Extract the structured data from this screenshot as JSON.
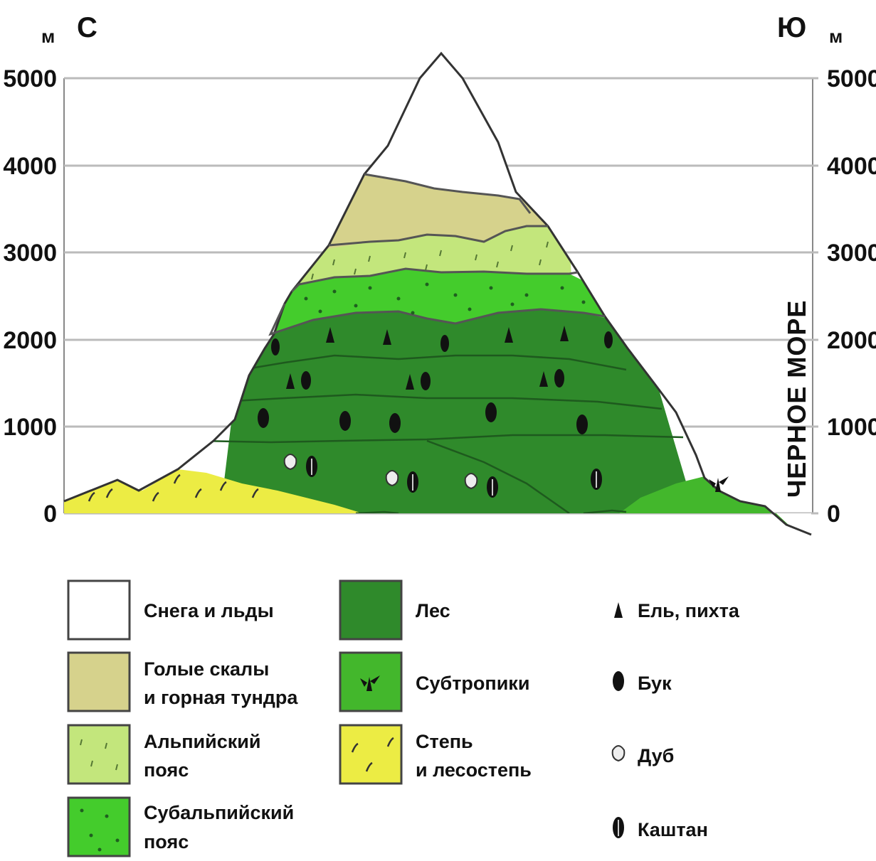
{
  "diagram": {
    "unit_left": "м",
    "unit_right": "м",
    "dir_north": "С",
    "dir_south": "Ю",
    "y_ticks": [
      "0",
      "1000",
      "2000",
      "3000",
      "4000",
      "5000"
    ],
    "sea_label": "ЧЕРНОЕ МОРЕ",
    "colors": {
      "snow": "#ffffff",
      "rock": "#d6d28c",
      "alpine": "#c3e67c",
      "subalpine": "#44cc2c",
      "forest": "#2f8a2b",
      "subtropics": "#43b72c",
      "steppe": "#ecec44"
    }
  },
  "legend": {
    "zones": [
      {
        "key": "snow",
        "label_1": "Снега и льды",
        "label_2": ""
      },
      {
        "key": "rock",
        "label_1": "Голые скалы",
        "label_2": "и горная тундра"
      },
      {
        "key": "alpine",
        "label_1": "Альпийский",
        "label_2": "пояс"
      },
      {
        "key": "subalpine",
        "label_1": "Субальпийский",
        "label_2": "пояс"
      },
      {
        "key": "forest",
        "label_1": "Лес",
        "label_2": ""
      },
      {
        "key": "subtropics",
        "label_1": "Субтропики",
        "label_2": ""
      },
      {
        "key": "steppe",
        "label_1": "Степь",
        "label_2": "и лесостепь"
      }
    ],
    "trees": [
      {
        "icon": "spruce-icon",
        "label": "Ель, пихта"
      },
      {
        "icon": "beech-icon",
        "label": "Бук"
      },
      {
        "icon": "oak-icon",
        "label": "Дуб"
      },
      {
        "icon": "chestnut-icon",
        "label": "Каштан"
      }
    ]
  }
}
